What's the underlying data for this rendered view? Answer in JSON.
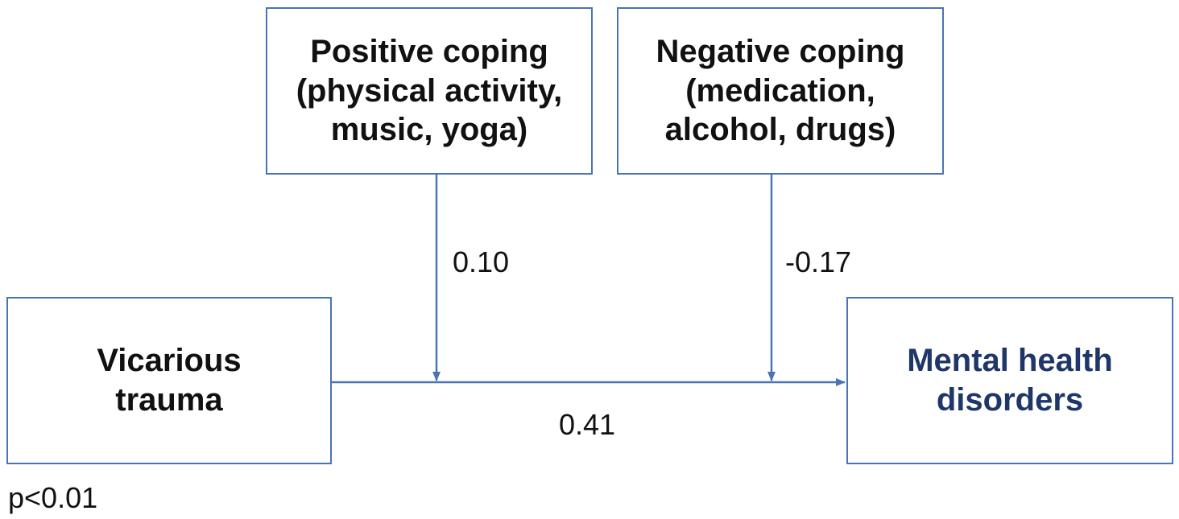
{
  "nodes": {
    "positive_coping": {
      "lines": [
        "Positive coping",
        "(physical activity,",
        "music, yoga)"
      ]
    },
    "negative_coping": {
      "lines": [
        "Negative coping",
        "(medication,",
        "alcohol, drugs)"
      ]
    },
    "vicarious_trauma": {
      "lines": [
        "Vicarious",
        "trauma"
      ]
    },
    "mental_health": {
      "lines": [
        "Mental health",
        "disorders"
      ]
    }
  },
  "edges": {
    "positive_moderation": "0.10",
    "negative_moderation": "-0.17",
    "main_effect": "0.41"
  },
  "footnote": "p<0.01",
  "colors": {
    "box_border": "#4a74b4",
    "arrow": "#4a74b4",
    "outcome_text": "#1f3768",
    "text": "#111111"
  }
}
